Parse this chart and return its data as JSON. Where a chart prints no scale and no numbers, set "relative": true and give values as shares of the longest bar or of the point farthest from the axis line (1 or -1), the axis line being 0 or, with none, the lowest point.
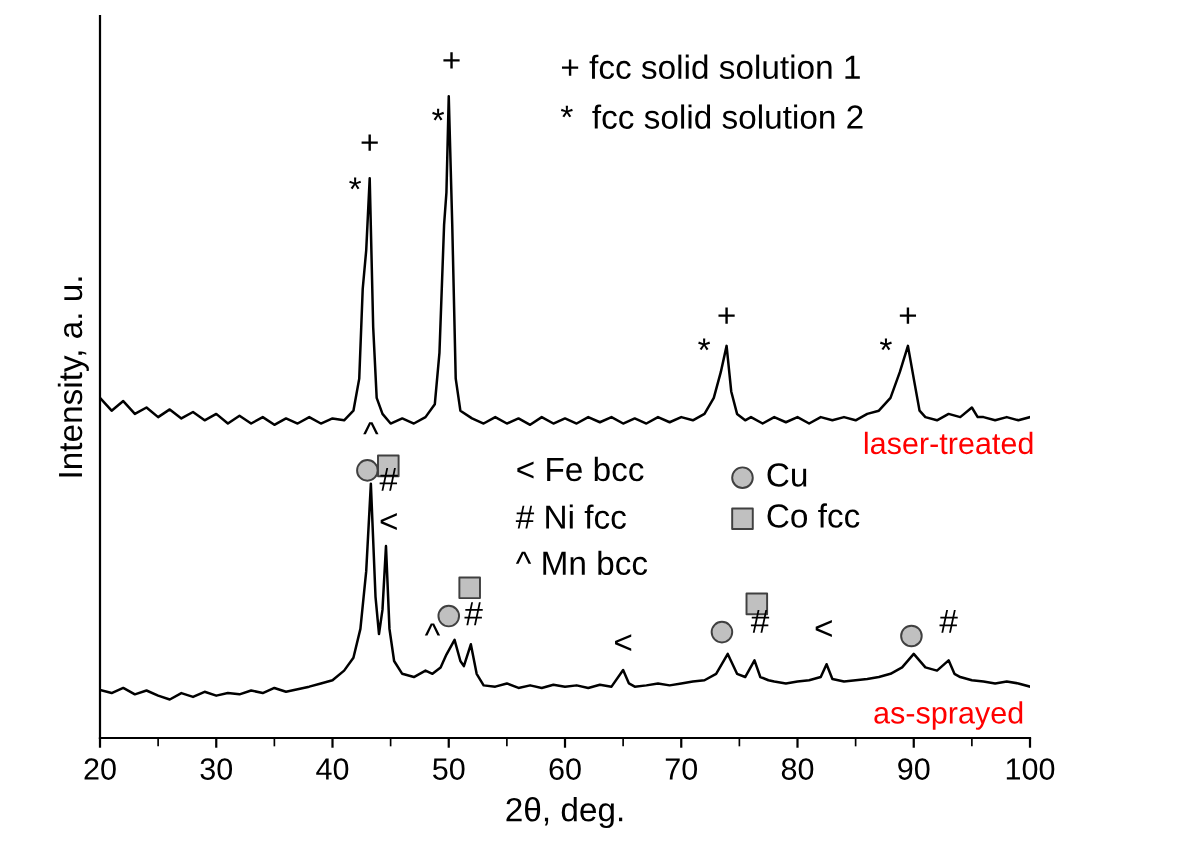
{
  "chart_data": {
    "type": "line",
    "relative": true,
    "xlabel": "2θ, deg.",
    "ylabel": "Intensity, a. u.",
    "xlim": [
      20,
      100
    ],
    "xticks": [
      20,
      30,
      40,
      50,
      60,
      70,
      80,
      90,
      100
    ],
    "grid": false,
    "legend": "center",
    "marker": "none",
    "line_style": "solid",
    "series": [
      {
        "name": "laser-treated",
        "color": "#000000",
        "x": [
          20,
          21,
          22,
          23,
          24,
          25,
          26,
          27,
          28,
          29,
          30,
          31,
          32,
          33,
          34,
          35,
          36,
          37,
          38,
          39,
          40,
          41,
          41.8,
          42.3,
          42.6,
          42.9,
          43.2,
          43.5,
          43.8,
          44.3,
          45,
          46,
          47,
          48,
          48.8,
          49.2,
          49.6,
          49.8,
          50.0,
          50.3,
          50.6,
          51,
          52,
          53,
          54,
          55,
          56,
          57,
          58,
          59,
          60,
          61,
          62,
          63,
          64,
          65,
          66,
          67,
          68,
          69,
          70,
          71,
          72,
          72.8,
          73.4,
          73.9,
          74.3,
          74.8,
          75.5,
          76,
          77,
          78,
          79,
          80,
          81,
          82,
          83,
          84,
          85,
          86,
          87,
          88,
          88.8,
          89.5,
          90,
          90.5,
          91,
          92,
          93,
          94,
          95,
          95.5,
          96,
          97,
          98,
          99,
          100
        ],
        "values": [
          0.53,
          0.51,
          0.525,
          0.505,
          0.515,
          0.5,
          0.512,
          0.498,
          0.508,
          0.495,
          0.505,
          0.49,
          0.502,
          0.49,
          0.5,
          0.488,
          0.498,
          0.49,
          0.5,
          0.49,
          0.498,
          0.495,
          0.51,
          0.56,
          0.7,
          0.76,
          0.872,
          0.64,
          0.53,
          0.505,
          0.49,
          0.498,
          0.49,
          0.5,
          0.52,
          0.6,
          0.8,
          0.85,
          1.0,
          0.8,
          0.56,
          0.51,
          0.498,
          0.49,
          0.5,
          0.49,
          0.498,
          0.488,
          0.5,
          0.49,
          0.498,
          0.49,
          0.5,
          0.492,
          0.5,
          0.49,
          0.498,
          0.49,
          0.5,
          0.492,
          0.5,
          0.495,
          0.505,
          0.53,
          0.57,
          0.611,
          0.54,
          0.505,
          0.495,
          0.5,
          0.49,
          0.5,
          0.492,
          0.5,
          0.49,
          0.5,
          0.495,
          0.5,
          0.495,
          0.505,
          0.51,
          0.53,
          0.57,
          0.611,
          0.56,
          0.51,
          0.5,
          0.495,
          0.505,
          0.5,
          0.515,
          0.5,
          0.5,
          0.495,
          0.5,
          0.495,
          0.5
        ]
      },
      {
        "name": "as-sprayed",
        "color": "#000000",
        "x": [
          20,
          21,
          22,
          23,
          24,
          25,
          26,
          27,
          28,
          29,
          30,
          31,
          32,
          33,
          34,
          35,
          36,
          37,
          38,
          39,
          40,
          41,
          41.8,
          42.4,
          42.9,
          43.3,
          43.7,
          44.0,
          44.3,
          44.6,
          44.9,
          45.3,
          46,
          47,
          48,
          48.6,
          49.3,
          49.8,
          50.5,
          51.0,
          51.3,
          51.9,
          52.4,
          53,
          54,
          55,
          56,
          57,
          58,
          59,
          60,
          61,
          62,
          63,
          64,
          65,
          65.5,
          66,
          67,
          68,
          69,
          70,
          71,
          72,
          73,
          74,
          74.8,
          75.5,
          76.3,
          76.8,
          77.5,
          78,
          79,
          80,
          81,
          82,
          82.5,
          83,
          84,
          85,
          86,
          87,
          88,
          89,
          90,
          91,
          92,
          93,
          93.5,
          94,
          95,
          96,
          97,
          98,
          99,
          100
        ],
        "values": [
          0.075,
          0.07,
          0.078,
          0.068,
          0.074,
          0.066,
          0.06,
          0.07,
          0.064,
          0.072,
          0.066,
          0.07,
          0.068,
          0.074,
          0.07,
          0.078,
          0.072,
          0.076,
          0.08,
          0.085,
          0.09,
          0.105,
          0.125,
          0.17,
          0.26,
          0.396,
          0.22,
          0.162,
          0.2,
          0.299,
          0.17,
          0.12,
          0.1,
          0.095,
          0.105,
          0.1,
          0.11,
          0.13,
          0.153,
          0.12,
          0.112,
          0.146,
          0.1,
          0.082,
          0.08,
          0.085,
          0.078,
          0.082,
          0.078,
          0.083,
          0.08,
          0.082,
          0.078,
          0.083,
          0.08,
          0.106,
          0.085,
          0.08,
          0.082,
          0.085,
          0.082,
          0.085,
          0.088,
          0.09,
          0.1,
          0.131,
          0.1,
          0.095,
          0.121,
          0.095,
          0.09,
          0.088,
          0.085,
          0.088,
          0.09,
          0.095,
          0.115,
          0.092,
          0.088,
          0.09,
          0.092,
          0.095,
          0.1,
          0.11,
          0.131,
          0.11,
          0.105,
          0.121,
          0.1,
          0.095,
          0.09,
          0.088,
          0.085,
          0.088,
          0.085,
          0.08
        ]
      },
      {
        "name": "Cu",
        "type": "scatter",
        "marker": "circle",
        "color": "#c0c0c0",
        "x": [
          43.0,
          50.0,
          73.5,
          89.8
        ],
        "values": [
          0.417,
          0.19,
          0.165,
          0.159
        ]
      },
      {
        "name": "Co fcc",
        "type": "scatter",
        "marker": "square",
        "color": "#c0c0c0",
        "x": [
          44.8,
          51.8,
          76.5
        ],
        "values": [
          0.424,
          0.234,
          0.209
        ]
      }
    ],
    "annotations": [
      "+ fcc solid solution 1",
      "*  fcc solid solution 2",
      "< Fe bcc",
      "# Ni fcc",
      "^ Mn bcc",
      {
        "text": "+",
        "x": 43.2,
        "y": 0.872
      },
      {
        "text": "*",
        "x": 42.9,
        "y": 0.76
      },
      {
        "text": "+",
        "x": 50.0,
        "y": 1.0
      },
      {
        "text": "*",
        "x": 49.8,
        "y": 0.85
      },
      {
        "text": "+",
        "x": 73.9,
        "y": 0.611
      },
      {
        "text": "*",
        "x": 73.4,
        "y": 0.57
      },
      {
        "text": "+",
        "x": 89.5,
        "y": 0.611
      },
      {
        "text": "*",
        "x": 88.8,
        "y": 0.57
      },
      {
        "text": "^",
        "x": 43.3,
        "y": 0.396
      },
      {
        "text": "#",
        "x": 44.6,
        "y": 0.299
      },
      {
        "text": "<",
        "x": 44.6,
        "y": 0.299
      },
      {
        "text": "^",
        "x": 48.6,
        "y": 0.1
      },
      {
        "text": "#",
        "x": 51.9,
        "y": 0.146
      },
      {
        "text": "<",
        "x": 65,
        "y": 0.106
      },
      {
        "text": "#",
        "x": 76.3,
        "y": 0.121
      },
      {
        "text": "<",
        "x": 82.5,
        "y": 0.115
      },
      {
        "text": "#",
        "x": 93,
        "y": 0.121
      }
    ]
  }
}
